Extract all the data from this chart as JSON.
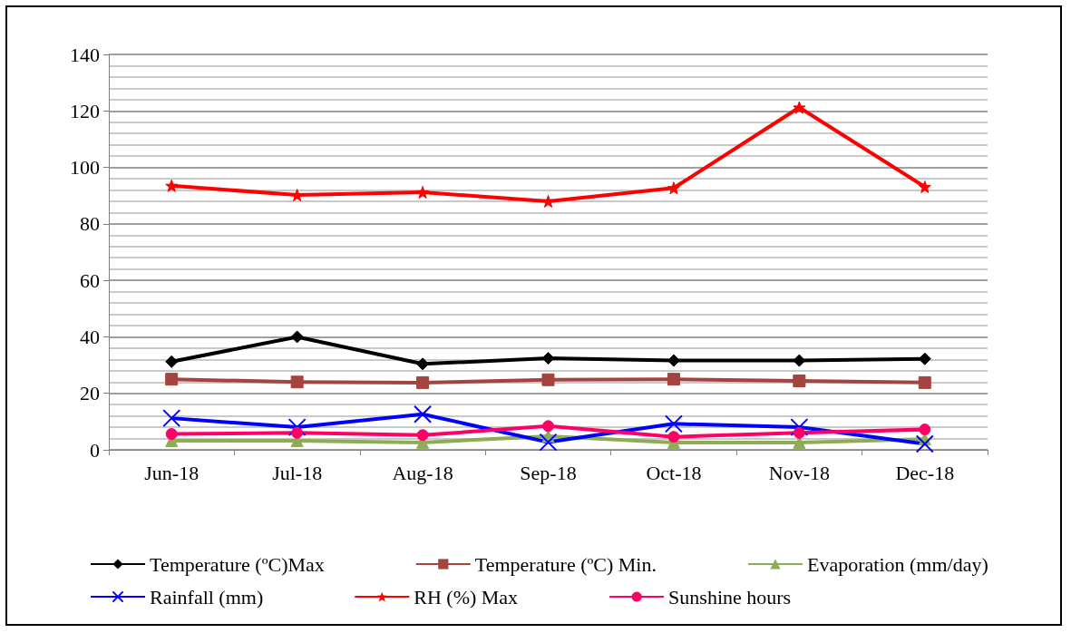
{
  "chart_data": {
    "type": "line",
    "categories": [
      "Jun-18",
      "Jul-18",
      "Aug-18",
      "Sep-18",
      "Oct-18",
      "Nov-18",
      "Dec-18"
    ],
    "ylim": [
      0,
      140
    ],
    "yticks": [
      0,
      20,
      40,
      60,
      80,
      100,
      120,
      140
    ],
    "grid": "y",
    "legend": "bottom",
    "line_style": "solid",
    "series": [
      {
        "name": "Temperature (ºC)Max",
        "color": "#000000",
        "marker": "diamond",
        "values": [
          31.2,
          40,
          30.4,
          32.4,
          31.6,
          31.6,
          32.2
        ]
      },
      {
        "name": "Temperature (ºC) Min.",
        "color": "#a5443f",
        "marker": "square",
        "values": [
          25,
          24,
          23.8,
          24.8,
          25,
          24.4,
          23.8
        ]
      },
      {
        "name": "Evaporation (mm/day)",
        "color": "#8eac55",
        "marker": "triangle",
        "values": [
          3.2,
          3.2,
          2.6,
          4.8,
          2.6,
          2.6,
          3.8
        ]
      },
      {
        "name": "Rainfall (mm)",
        "color": "#0000ff",
        "marker": "cross",
        "values": [
          11.2,
          8,
          12.6,
          2.7,
          9.2,
          8,
          2.1
        ]
      },
      {
        "name": "RH (%) Max",
        "color": "#ff0000",
        "marker": "star",
        "values": [
          93.5,
          90.2,
          91.2,
          88,
          92.7,
          121.2,
          93.1
        ]
      },
      {
        "name": "Sunshine hours",
        "color": "#ff0066",
        "marker": "circle",
        "values": [
          5.6,
          6,
          5.2,
          8.4,
          4.6,
          6,
          7.2
        ]
      }
    ]
  }
}
